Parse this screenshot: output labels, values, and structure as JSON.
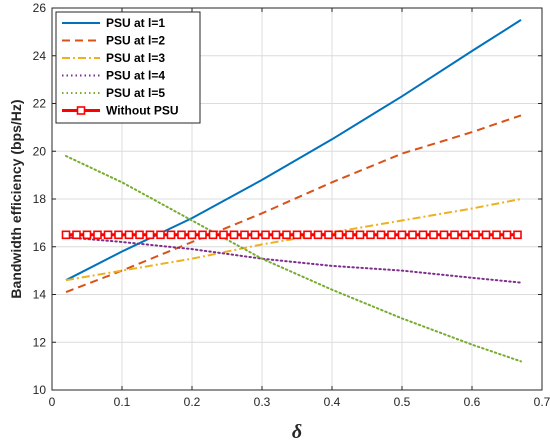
{
  "chart_data": {
    "type": "line",
    "xlabel": "δ",
    "ylabel": "Bandwidth efficiency (bps/Hz)",
    "xlim": [
      0,
      0.7
    ],
    "ylim": [
      10,
      26
    ],
    "xticks": [
      "0",
      "0.1",
      "0.2",
      "0.3",
      "0.4",
      "0.5",
      "0.6",
      "0.7"
    ],
    "yticks": [
      "10",
      "12",
      "14",
      "16",
      "18",
      "20",
      "22",
      "24",
      "26"
    ],
    "grid": true,
    "legend_position": "top-left",
    "series": [
      {
        "name": "PSU at l=1",
        "color": "#0072BD",
        "style": "solid",
        "x": [
          0.02,
          0.1,
          0.2,
          0.3,
          0.4,
          0.5,
          0.6,
          0.67
        ],
        "y": [
          14.6,
          15.8,
          17.2,
          18.8,
          20.5,
          22.3,
          24.2,
          25.5
        ]
      },
      {
        "name": "PSU at l=2",
        "color": "#D95319",
        "style": "dashed",
        "x": [
          0.02,
          0.1,
          0.2,
          0.3,
          0.4,
          0.5,
          0.6,
          0.67
        ],
        "y": [
          14.1,
          15.0,
          16.2,
          17.4,
          18.7,
          19.9,
          20.8,
          21.5
        ]
      },
      {
        "name": "PSU at l=3",
        "color": "#EDB120",
        "style": "dashdot",
        "x": [
          0.02,
          0.1,
          0.2,
          0.3,
          0.4,
          0.5,
          0.6,
          0.67
        ],
        "y": [
          14.6,
          15.0,
          15.5,
          16.1,
          16.6,
          17.1,
          17.6,
          18.0
        ]
      },
      {
        "name": "PSU at l=4",
        "color": "#7E2F8E",
        "style": "dotted",
        "x": [
          0.02,
          0.1,
          0.2,
          0.3,
          0.4,
          0.5,
          0.6,
          0.67
        ],
        "y": [
          16.4,
          16.2,
          15.9,
          15.5,
          15.2,
          15.0,
          14.7,
          14.5
        ]
      },
      {
        "name": "PSU at l=5",
        "color": "#77AC30",
        "style": "dotted",
        "x": [
          0.02,
          0.1,
          0.2,
          0.3,
          0.4,
          0.5,
          0.6,
          0.67
        ],
        "y": [
          19.8,
          18.7,
          17.1,
          15.5,
          14.2,
          13.0,
          11.9,
          11.2
        ]
      },
      {
        "name": "Without PSU",
        "color": "#FF0000",
        "style": "solid-square-markers",
        "x": [
          0.02,
          0.67
        ],
        "y": [
          16.5,
          16.5
        ],
        "marker_x": [
          0.02,
          0.035,
          0.05,
          0.065,
          0.08,
          0.095,
          0.11,
          0.125,
          0.14,
          0.155,
          0.17,
          0.185,
          0.2,
          0.215,
          0.23,
          0.245,
          0.26,
          0.275,
          0.29,
          0.305,
          0.32,
          0.335,
          0.35,
          0.365,
          0.38,
          0.395,
          0.41,
          0.425,
          0.44,
          0.455,
          0.47,
          0.485,
          0.5,
          0.515,
          0.53,
          0.545,
          0.56,
          0.575,
          0.59,
          0.605,
          0.62,
          0.635,
          0.65,
          0.665
        ]
      }
    ]
  }
}
